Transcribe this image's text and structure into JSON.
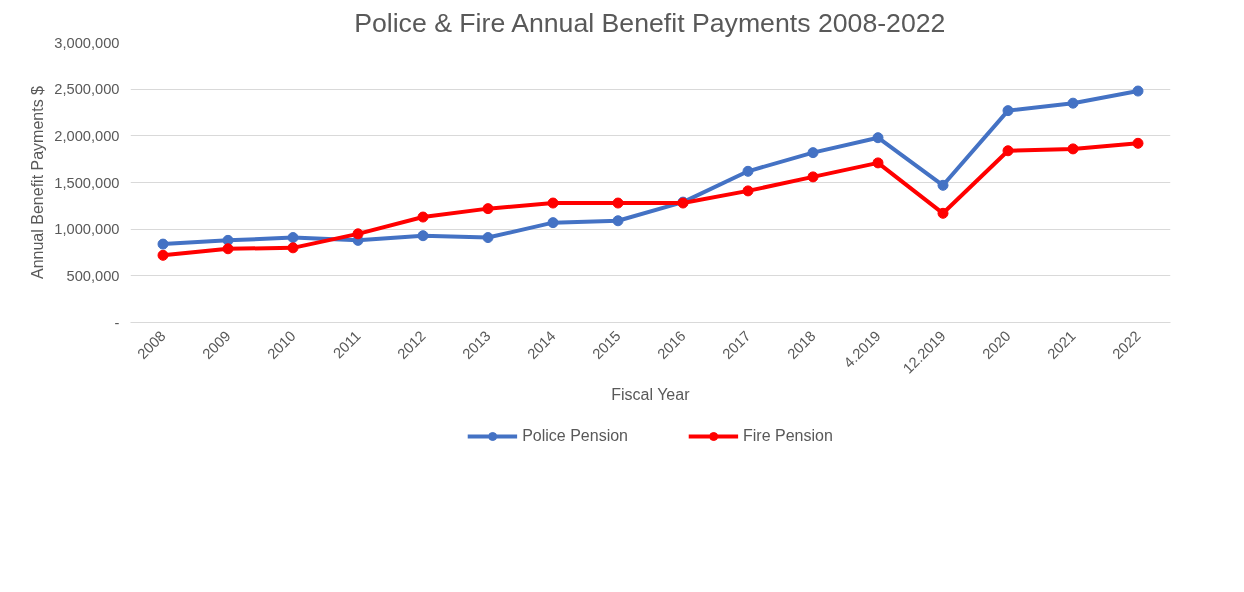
{
  "chart_data": {
    "type": "line",
    "title": "Police & Fire Annual Benefit Payments 2008-2022",
    "xlabel": "Fiscal Year",
    "ylabel": "Annual Benefit Payments $",
    "categories": [
      "2008",
      "2009",
      "2010",
      "2011",
      "2012",
      "2013",
      "2014",
      "2015",
      "2016",
      "2017",
      "2018",
      "4.2019",
      "12.2019",
      "2020",
      "2021",
      "2022"
    ],
    "series": [
      {
        "name": "Police Pension",
        "color": "#4472c4",
        "values": [
          840000,
          880000,
          910000,
          880000,
          930000,
          910000,
          1070000,
          1090000,
          1290000,
          1620000,
          1820000,
          1980000,
          1470000,
          2270000,
          2350000,
          2480000
        ]
      },
      {
        "name": "Fire Pension",
        "color": "#ff0000",
        "values": [
          720000,
          790000,
          800000,
          950000,
          1130000,
          1220000,
          1280000,
          1280000,
          1280000,
          1410000,
          1560000,
          1710000,
          1170000,
          1840000,
          1860000,
          1920000
        ]
      }
    ],
    "ylim": [
      0,
      3000000
    ],
    "yticks": [
      {
        "value": 0,
        "label": "-"
      },
      {
        "value": 500000,
        "label": "500,000"
      },
      {
        "value": 1000000,
        "label": "1,000,000"
      },
      {
        "value": 1500000,
        "label": "1,500,000"
      },
      {
        "value": 2000000,
        "label": "2,000,000"
      },
      {
        "value": 2500000,
        "label": "2,500,000"
      },
      {
        "value": 3000000,
        "label": "3,000,000"
      }
    ],
    "grid": "y",
    "legend": "bottom",
    "marker": "circle",
    "line_style": "solid"
  }
}
